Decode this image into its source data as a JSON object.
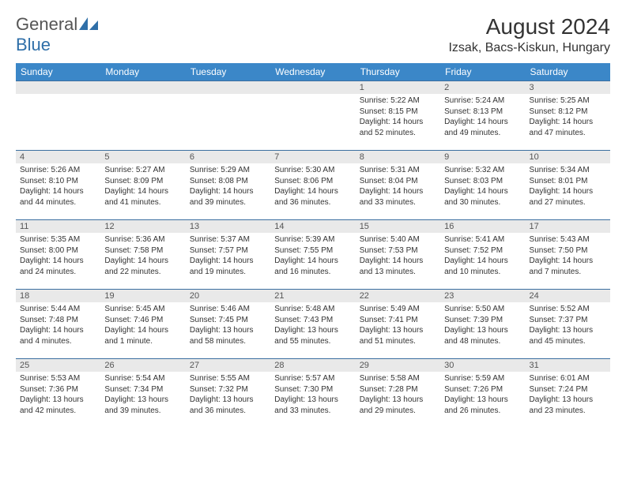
{
  "brand": {
    "part1": "General",
    "part2": "Blue"
  },
  "title": "August 2024",
  "location": "Izsak, Bacs-Kiskun, Hungary",
  "colors": {
    "header_bg": "#3b87c8",
    "header_text": "#ffffff",
    "row_border": "#3b6fa0",
    "daynum_bg": "#e9e9e9",
    "logo_blue": "#2f6fa8"
  },
  "font": {
    "day_text_size": 10,
    "header_size": 12,
    "title_size": 28
  },
  "weekdays": [
    "Sunday",
    "Monday",
    "Tuesday",
    "Wednesday",
    "Thursday",
    "Friday",
    "Saturday"
  ],
  "weeks": [
    [
      null,
      null,
      null,
      null,
      {
        "n": "1",
        "sr": "5:22 AM",
        "ss": "8:15 PM",
        "dl": "14 hours and 52 minutes."
      },
      {
        "n": "2",
        "sr": "5:24 AM",
        "ss": "8:13 PM",
        "dl": "14 hours and 49 minutes."
      },
      {
        "n": "3",
        "sr": "5:25 AM",
        "ss": "8:12 PM",
        "dl": "14 hours and 47 minutes."
      }
    ],
    [
      {
        "n": "4",
        "sr": "5:26 AM",
        "ss": "8:10 PM",
        "dl": "14 hours and 44 minutes."
      },
      {
        "n": "5",
        "sr": "5:27 AM",
        "ss": "8:09 PM",
        "dl": "14 hours and 41 minutes."
      },
      {
        "n": "6",
        "sr": "5:29 AM",
        "ss": "8:08 PM",
        "dl": "14 hours and 39 minutes."
      },
      {
        "n": "7",
        "sr": "5:30 AM",
        "ss": "8:06 PM",
        "dl": "14 hours and 36 minutes."
      },
      {
        "n": "8",
        "sr": "5:31 AM",
        "ss": "8:04 PM",
        "dl": "14 hours and 33 minutes."
      },
      {
        "n": "9",
        "sr": "5:32 AM",
        "ss": "8:03 PM",
        "dl": "14 hours and 30 minutes."
      },
      {
        "n": "10",
        "sr": "5:34 AM",
        "ss": "8:01 PM",
        "dl": "14 hours and 27 minutes."
      }
    ],
    [
      {
        "n": "11",
        "sr": "5:35 AM",
        "ss": "8:00 PM",
        "dl": "14 hours and 24 minutes."
      },
      {
        "n": "12",
        "sr": "5:36 AM",
        "ss": "7:58 PM",
        "dl": "14 hours and 22 minutes."
      },
      {
        "n": "13",
        "sr": "5:37 AM",
        "ss": "7:57 PM",
        "dl": "14 hours and 19 minutes."
      },
      {
        "n": "14",
        "sr": "5:39 AM",
        "ss": "7:55 PM",
        "dl": "14 hours and 16 minutes."
      },
      {
        "n": "15",
        "sr": "5:40 AM",
        "ss": "7:53 PM",
        "dl": "14 hours and 13 minutes."
      },
      {
        "n": "16",
        "sr": "5:41 AM",
        "ss": "7:52 PM",
        "dl": "14 hours and 10 minutes."
      },
      {
        "n": "17",
        "sr": "5:43 AM",
        "ss": "7:50 PM",
        "dl": "14 hours and 7 minutes."
      }
    ],
    [
      {
        "n": "18",
        "sr": "5:44 AM",
        "ss": "7:48 PM",
        "dl": "14 hours and 4 minutes."
      },
      {
        "n": "19",
        "sr": "5:45 AM",
        "ss": "7:46 PM",
        "dl": "14 hours and 1 minute."
      },
      {
        "n": "20",
        "sr": "5:46 AM",
        "ss": "7:45 PM",
        "dl": "13 hours and 58 minutes."
      },
      {
        "n": "21",
        "sr": "5:48 AM",
        "ss": "7:43 PM",
        "dl": "13 hours and 55 minutes."
      },
      {
        "n": "22",
        "sr": "5:49 AM",
        "ss": "7:41 PM",
        "dl": "13 hours and 51 minutes."
      },
      {
        "n": "23",
        "sr": "5:50 AM",
        "ss": "7:39 PM",
        "dl": "13 hours and 48 minutes."
      },
      {
        "n": "24",
        "sr": "5:52 AM",
        "ss": "7:37 PM",
        "dl": "13 hours and 45 minutes."
      }
    ],
    [
      {
        "n": "25",
        "sr": "5:53 AM",
        "ss": "7:36 PM",
        "dl": "13 hours and 42 minutes."
      },
      {
        "n": "26",
        "sr": "5:54 AM",
        "ss": "7:34 PM",
        "dl": "13 hours and 39 minutes."
      },
      {
        "n": "27",
        "sr": "5:55 AM",
        "ss": "7:32 PM",
        "dl": "13 hours and 36 minutes."
      },
      {
        "n": "28",
        "sr": "5:57 AM",
        "ss": "7:30 PM",
        "dl": "13 hours and 33 minutes."
      },
      {
        "n": "29",
        "sr": "5:58 AM",
        "ss": "7:28 PM",
        "dl": "13 hours and 29 minutes."
      },
      {
        "n": "30",
        "sr": "5:59 AM",
        "ss": "7:26 PM",
        "dl": "13 hours and 26 minutes."
      },
      {
        "n": "31",
        "sr": "6:01 AM",
        "ss": "7:24 PM",
        "dl": "13 hours and 23 minutes."
      }
    ]
  ]
}
